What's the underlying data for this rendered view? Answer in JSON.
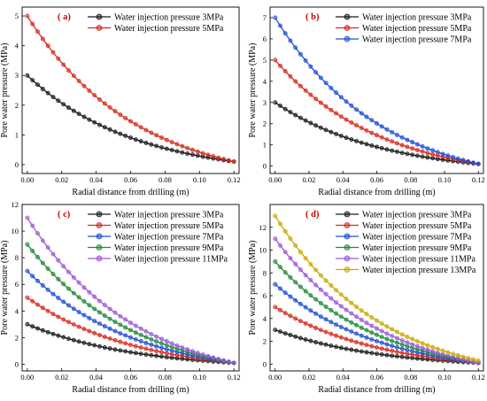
{
  "chart_data": [
    {
      "type": "line",
      "panel_label": "( a)",
      "xlabel": "Radial distance from drilling (m)",
      "ylabel": "Pore water pressure (MPa)",
      "xlim": [
        -0.003,
        0.123
      ],
      "ylim": [
        -0.3,
        5.3
      ],
      "xticks": [
        0.0,
        0.02,
        0.04,
        0.06,
        0.08,
        0.1,
        0.12
      ],
      "xtick_labels": [
        "0.00",
        "0.02",
        "0.04",
        "0.06",
        "0.08",
        "0.10",
        "0.12"
      ],
      "yticks": [
        0,
        1,
        2,
        3,
        4,
        5
      ],
      "ytick_labels": [
        "0",
        "1",
        "2",
        "3",
        "4",
        "5"
      ],
      "legend_position": "top-right",
      "series": [
        {
          "name": "Water injection pressure 3MPa",
          "color": "#1a1a1a",
          "x_start": 0.0,
          "x_end": 0.12,
          "y_start": 3,
          "y_end": 0.1,
          "decay": 16
        },
        {
          "name": "Water injection pressure 5MPa",
          "color": "#d62b1e",
          "x_start": 0.0,
          "x_end": 0.12,
          "y_start": 5,
          "y_end": 0.1,
          "decay": 16
        }
      ]
    },
    {
      "type": "line",
      "panel_label": "( b)",
      "xlabel": "Radial distance from drilling (m)",
      "ylabel": "Pore water pressure (MPa)",
      "xlim": [
        -0.003,
        0.123
      ],
      "ylim": [
        -0.35,
        7.5
      ],
      "xticks": [
        0.0,
        0.02,
        0.04,
        0.06,
        0.08,
        0.1,
        0.12
      ],
      "xtick_labels": [
        "0.00",
        "0.02",
        "0.04",
        "0.06",
        "0.08",
        "0.10",
        "0.12"
      ],
      "yticks": [
        0,
        1,
        2,
        3,
        4,
        5,
        6,
        7
      ],
      "ytick_labels": [
        "0",
        "1",
        "2",
        "3",
        "4",
        "5",
        "6",
        "7"
      ],
      "legend_position": "top-right",
      "series": [
        {
          "name": "Water injection pressure 3MPa",
          "color": "#1a1a1a",
          "x_start": 0.0,
          "x_end": 0.12,
          "y_start": 3,
          "y_end": 0.1,
          "decay": 16
        },
        {
          "name": "Water injection pressure 5MPa",
          "color": "#d62b1e",
          "x_start": 0.0,
          "x_end": 0.12,
          "y_start": 5,
          "y_end": 0.1,
          "decay": 16
        },
        {
          "name": "Water injection pressure 7MPa",
          "color": "#1f4fd6",
          "x_start": 0.0,
          "x_end": 0.12,
          "y_start": 7,
          "y_end": 0.1,
          "decay": 16
        }
      ]
    },
    {
      "type": "line",
      "panel_label": "( c)",
      "xlabel": "Radial distance from drilling (m)",
      "ylabel": "Pore water pressure (MPa)",
      "xlim": [
        -0.003,
        0.123
      ],
      "ylim": [
        -0.5,
        12.0
      ],
      "xticks": [
        0.0,
        0.02,
        0.04,
        0.06,
        0.08,
        0.1,
        0.12
      ],
      "xtick_labels": [
        "0.00",
        "0.02",
        "0.04",
        "0.06",
        "0.08",
        "0.10",
        "0.12"
      ],
      "yticks": [
        0,
        2,
        4,
        6,
        8,
        10,
        12
      ],
      "ytick_labels": [
        "0",
        "2",
        "4",
        "6",
        "8",
        "10",
        "12"
      ],
      "legend_position": "top-right",
      "series": [
        {
          "name": "Water injection pressure 3MPa",
          "color": "#1a1a1a",
          "x_start": 0.0,
          "x_end": 0.12,
          "y_start": 3,
          "y_end": 0.1,
          "decay": 16
        },
        {
          "name": "Water injection pressure 5MPa",
          "color": "#d62b1e",
          "x_start": 0.0,
          "x_end": 0.12,
          "y_start": 5,
          "y_end": 0.1,
          "decay": 16
        },
        {
          "name": "Water injection pressure 7MPa",
          "color": "#1f4fd6",
          "x_start": 0.0,
          "x_end": 0.12,
          "y_start": 7,
          "y_end": 0.1,
          "decay": 16
        },
        {
          "name": "Water injection pressure 9MPa",
          "color": "#1f8a3a",
          "x_start": 0.0,
          "x_end": 0.12,
          "y_start": 9,
          "y_end": 0.1,
          "decay": 16
        },
        {
          "name": "Water injection pressure 11MPa",
          "color": "#9b59d9",
          "x_start": 0.0,
          "x_end": 0.12,
          "y_start": 11,
          "y_end": 0.1,
          "decay": 16
        }
      ]
    },
    {
      "type": "line",
      "panel_label": "( d)",
      "xlabel": "Radial distance from drilling (m)",
      "ylabel": "Pore water pressure (MPa)",
      "xlim": [
        -0.003,
        0.123
      ],
      "ylim": [
        -0.6,
        14.0
      ],
      "xticks": [
        0.0,
        0.02,
        0.04,
        0.06,
        0.08,
        0.1,
        0.12
      ],
      "xtick_labels": [
        "0.00",
        "0.02",
        "0.04",
        "0.06",
        "0.08",
        "0.10",
        "0.12"
      ],
      "yticks": [
        0,
        2,
        4,
        6,
        8,
        10,
        12
      ],
      "ytick_labels": [
        "0",
        "2",
        "4",
        "6",
        "8",
        "10",
        "12"
      ],
      "legend_position": "top-right",
      "series": [
        {
          "name": "Water injection pressure 3MPa",
          "color": "#1a1a1a",
          "x_start": 0.0,
          "x_end": 0.12,
          "y_start": 3,
          "y_end": 0.1,
          "decay": 16
        },
        {
          "name": "Water injection pressure 5MPa",
          "color": "#d62b1e",
          "x_start": 0.0,
          "x_end": 0.12,
          "y_start": 5,
          "y_end": 0.1,
          "decay": 16
        },
        {
          "name": "Water injection pressure 7MPa",
          "color": "#1f4fd6",
          "x_start": 0.0,
          "x_end": 0.12,
          "y_start": 7,
          "y_end": 0.1,
          "decay": 16
        },
        {
          "name": "Water injection pressure 9MPa",
          "color": "#1f8a3a",
          "x_start": 0.0,
          "x_end": 0.12,
          "y_start": 9,
          "y_end": 0.1,
          "decay": 16
        },
        {
          "name": "Water injection pressure 11MPa",
          "color": "#9b59d9",
          "x_start": 0.0,
          "x_end": 0.12,
          "y_start": 11,
          "y_end": 0.1,
          "decay": 16
        },
        {
          "name": "Water injection pressure 13MPa",
          "color": "#c9a900",
          "x_start": 0.0,
          "x_end": 0.12,
          "y_start": 13,
          "y_end": 0.3,
          "decay": 16
        }
      ]
    }
  ]
}
